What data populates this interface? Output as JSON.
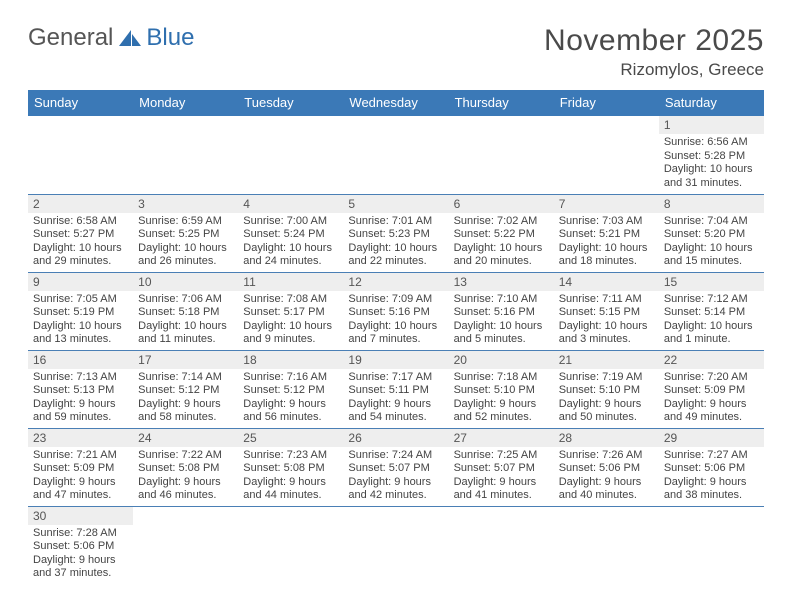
{
  "logo": {
    "text1": "General",
    "text2": "Blue"
  },
  "title": "November 2025",
  "location": "Rizomylos, Greece",
  "colors": {
    "header_bg": "#3b79b7",
    "header_fg": "#ffffff",
    "daynum_bg": "#eeeeee",
    "row_border": "#4a7fb5",
    "text": "#444444"
  },
  "weekdays": [
    "Sunday",
    "Monday",
    "Tuesday",
    "Wednesday",
    "Thursday",
    "Friday",
    "Saturday"
  ],
  "weeks": [
    [
      {
        "empty": true
      },
      {
        "empty": true
      },
      {
        "empty": true
      },
      {
        "empty": true
      },
      {
        "empty": true
      },
      {
        "empty": true
      },
      {
        "num": "1",
        "sunrise": "Sunrise: 6:56 AM",
        "sunset": "Sunset: 5:28 PM",
        "day1": "Daylight: 10 hours",
        "day2": "and 31 minutes."
      }
    ],
    [
      {
        "num": "2",
        "sunrise": "Sunrise: 6:58 AM",
        "sunset": "Sunset: 5:27 PM",
        "day1": "Daylight: 10 hours",
        "day2": "and 29 minutes."
      },
      {
        "num": "3",
        "sunrise": "Sunrise: 6:59 AM",
        "sunset": "Sunset: 5:25 PM",
        "day1": "Daylight: 10 hours",
        "day2": "and 26 minutes."
      },
      {
        "num": "4",
        "sunrise": "Sunrise: 7:00 AM",
        "sunset": "Sunset: 5:24 PM",
        "day1": "Daylight: 10 hours",
        "day2": "and 24 minutes."
      },
      {
        "num": "5",
        "sunrise": "Sunrise: 7:01 AM",
        "sunset": "Sunset: 5:23 PM",
        "day1": "Daylight: 10 hours",
        "day2": "and 22 minutes."
      },
      {
        "num": "6",
        "sunrise": "Sunrise: 7:02 AM",
        "sunset": "Sunset: 5:22 PM",
        "day1": "Daylight: 10 hours",
        "day2": "and 20 minutes."
      },
      {
        "num": "7",
        "sunrise": "Sunrise: 7:03 AM",
        "sunset": "Sunset: 5:21 PM",
        "day1": "Daylight: 10 hours",
        "day2": "and 18 minutes."
      },
      {
        "num": "8",
        "sunrise": "Sunrise: 7:04 AM",
        "sunset": "Sunset: 5:20 PM",
        "day1": "Daylight: 10 hours",
        "day2": "and 15 minutes."
      }
    ],
    [
      {
        "num": "9",
        "sunrise": "Sunrise: 7:05 AM",
        "sunset": "Sunset: 5:19 PM",
        "day1": "Daylight: 10 hours",
        "day2": "and 13 minutes."
      },
      {
        "num": "10",
        "sunrise": "Sunrise: 7:06 AM",
        "sunset": "Sunset: 5:18 PM",
        "day1": "Daylight: 10 hours",
        "day2": "and 11 minutes."
      },
      {
        "num": "11",
        "sunrise": "Sunrise: 7:08 AM",
        "sunset": "Sunset: 5:17 PM",
        "day1": "Daylight: 10 hours",
        "day2": "and 9 minutes."
      },
      {
        "num": "12",
        "sunrise": "Sunrise: 7:09 AM",
        "sunset": "Sunset: 5:16 PM",
        "day1": "Daylight: 10 hours",
        "day2": "and 7 minutes."
      },
      {
        "num": "13",
        "sunrise": "Sunrise: 7:10 AM",
        "sunset": "Sunset: 5:16 PM",
        "day1": "Daylight: 10 hours",
        "day2": "and 5 minutes."
      },
      {
        "num": "14",
        "sunrise": "Sunrise: 7:11 AM",
        "sunset": "Sunset: 5:15 PM",
        "day1": "Daylight: 10 hours",
        "day2": "and 3 minutes."
      },
      {
        "num": "15",
        "sunrise": "Sunrise: 7:12 AM",
        "sunset": "Sunset: 5:14 PM",
        "day1": "Daylight: 10 hours",
        "day2": "and 1 minute."
      }
    ],
    [
      {
        "num": "16",
        "sunrise": "Sunrise: 7:13 AM",
        "sunset": "Sunset: 5:13 PM",
        "day1": "Daylight: 9 hours",
        "day2": "and 59 minutes."
      },
      {
        "num": "17",
        "sunrise": "Sunrise: 7:14 AM",
        "sunset": "Sunset: 5:12 PM",
        "day1": "Daylight: 9 hours",
        "day2": "and 58 minutes."
      },
      {
        "num": "18",
        "sunrise": "Sunrise: 7:16 AM",
        "sunset": "Sunset: 5:12 PM",
        "day1": "Daylight: 9 hours",
        "day2": "and 56 minutes."
      },
      {
        "num": "19",
        "sunrise": "Sunrise: 7:17 AM",
        "sunset": "Sunset: 5:11 PM",
        "day1": "Daylight: 9 hours",
        "day2": "and 54 minutes."
      },
      {
        "num": "20",
        "sunrise": "Sunrise: 7:18 AM",
        "sunset": "Sunset: 5:10 PM",
        "day1": "Daylight: 9 hours",
        "day2": "and 52 minutes."
      },
      {
        "num": "21",
        "sunrise": "Sunrise: 7:19 AM",
        "sunset": "Sunset: 5:10 PM",
        "day1": "Daylight: 9 hours",
        "day2": "and 50 minutes."
      },
      {
        "num": "22",
        "sunrise": "Sunrise: 7:20 AM",
        "sunset": "Sunset: 5:09 PM",
        "day1": "Daylight: 9 hours",
        "day2": "and 49 minutes."
      }
    ],
    [
      {
        "num": "23",
        "sunrise": "Sunrise: 7:21 AM",
        "sunset": "Sunset: 5:09 PM",
        "day1": "Daylight: 9 hours",
        "day2": "and 47 minutes."
      },
      {
        "num": "24",
        "sunrise": "Sunrise: 7:22 AM",
        "sunset": "Sunset: 5:08 PM",
        "day1": "Daylight: 9 hours",
        "day2": "and 46 minutes."
      },
      {
        "num": "25",
        "sunrise": "Sunrise: 7:23 AM",
        "sunset": "Sunset: 5:08 PM",
        "day1": "Daylight: 9 hours",
        "day2": "and 44 minutes."
      },
      {
        "num": "26",
        "sunrise": "Sunrise: 7:24 AM",
        "sunset": "Sunset: 5:07 PM",
        "day1": "Daylight: 9 hours",
        "day2": "and 42 minutes."
      },
      {
        "num": "27",
        "sunrise": "Sunrise: 7:25 AM",
        "sunset": "Sunset: 5:07 PM",
        "day1": "Daylight: 9 hours",
        "day2": "and 41 minutes."
      },
      {
        "num": "28",
        "sunrise": "Sunrise: 7:26 AM",
        "sunset": "Sunset: 5:06 PM",
        "day1": "Daylight: 9 hours",
        "day2": "and 40 minutes."
      },
      {
        "num": "29",
        "sunrise": "Sunrise: 7:27 AM",
        "sunset": "Sunset: 5:06 PM",
        "day1": "Daylight: 9 hours",
        "day2": "and 38 minutes."
      }
    ],
    [
      {
        "num": "30",
        "sunrise": "Sunrise: 7:28 AM",
        "sunset": "Sunset: 5:06 PM",
        "day1": "Daylight: 9 hours",
        "day2": "and 37 minutes."
      },
      {
        "empty": true
      },
      {
        "empty": true
      },
      {
        "empty": true
      },
      {
        "empty": true
      },
      {
        "empty": true
      },
      {
        "empty": true
      }
    ]
  ]
}
